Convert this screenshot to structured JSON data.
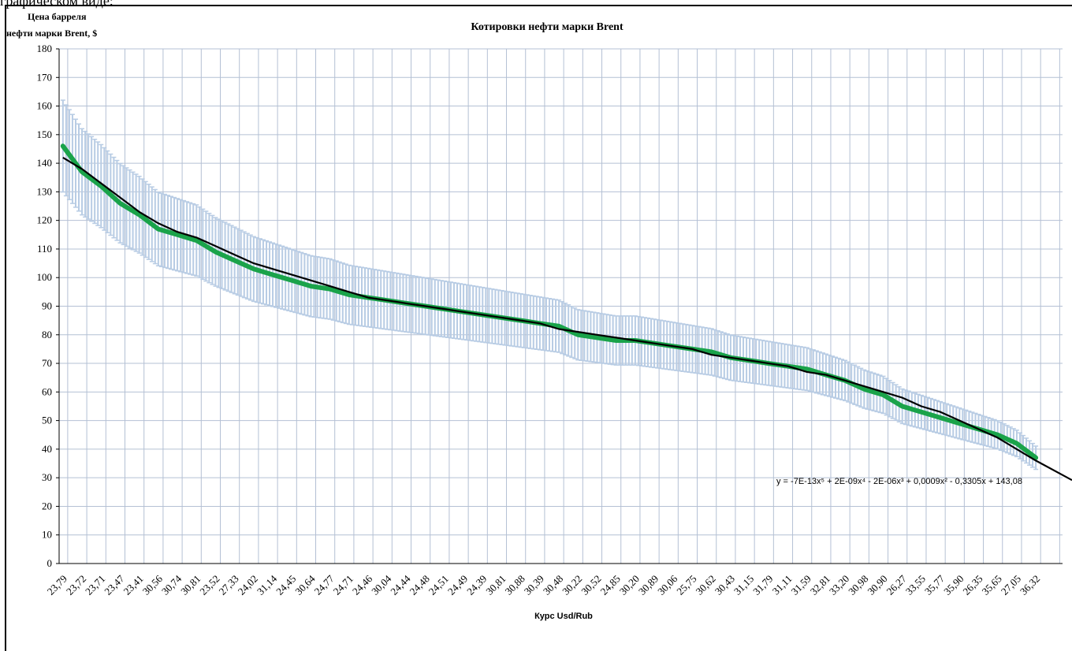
{
  "top_cutoff_text": "графическом виде:",
  "chart_data": {
    "type": "line",
    "title": "Котировки нефти марки Brent",
    "ylabel_line1": "Цена барреля",
    "ylabel_line2": "нефти марки Brent, $",
    "xlabel": "Курс Usd/Rub",
    "ylim": [
      0,
      180
    ],
    "yticks": [
      0,
      10,
      20,
      30,
      40,
      50,
      60,
      70,
      80,
      90,
      100,
      110,
      120,
      130,
      140,
      150,
      160,
      170,
      180
    ],
    "grid": true,
    "legend": "none",
    "categories": [
      "23,79",
      "23,72",
      "23,71",
      "23,47",
      "23,41",
      "30,56",
      "30,74",
      "30,81",
      "23,52",
      "27,33",
      "24,02",
      "31,14",
      "24,45",
      "30,64",
      "24,77",
      "24,71",
      "24,46",
      "30,04",
      "24,44",
      "24,48",
      "24,51",
      "24,49",
      "24,39",
      "30,81",
      "30,88",
      "30,39",
      "30,48",
      "30,22",
      "30,52",
      "24,85",
      "30,20",
      "30,89",
      "30,06",
      "25,75",
      "30,62",
      "30,43",
      "31,15",
      "31,79",
      "31,11",
      "31,59",
      "32,81",
      "33,20",
      "30,98",
      "30,90",
      "26,27",
      "33,55",
      "35,77",
      "35,90",
      "26,35",
      "35,65",
      "27,05",
      "36,32"
    ],
    "series": [
      {
        "values": [
          146,
          137,
          132,
          126,
          122,
          117,
          115,
          113,
          109,
          106,
          103,
          101,
          99,
          97,
          96,
          94,
          93,
          92,
          91,
          90,
          89,
          88,
          87,
          86,
          85,
          84,
          83,
          80,
          79,
          78,
          78,
          77,
          76,
          75,
          74,
          72,
          71,
          70,
          69,
          68,
          66,
          64,
          61,
          59,
          55,
          53,
          51,
          49,
          47,
          45,
          42,
          37
        ],
        "error_pct": 0.11,
        "color": "#1aa34a"
      },
      {
        "values": [
          142,
          138,
          133,
          128,
          123,
          119,
          116,
          114,
          111,
          108,
          105,
          103,
          101,
          99,
          97,
          95,
          93,
          92,
          91,
          90,
          89,
          88,
          87,
          86,
          85,
          84,
          82,
          81,
          80,
          79,
          78,
          77,
          76,
          75,
          73,
          72,
          71,
          70,
          69,
          67,
          66,
          64,
          62,
          60,
          58,
          55,
          53,
          50,
          47,
          44,
          40,
          36
        ],
        "color": "#000000"
      }
    ],
    "equation": "y = -7E-13x⁵ + 2E-09x⁴ - 2E-06x³ + 0,0009x² - 0,3305x + 143,08",
    "colors": {
      "error_bars": "#b8cce4",
      "grid": "#b4c0d4",
      "axis": "#000000"
    }
  }
}
